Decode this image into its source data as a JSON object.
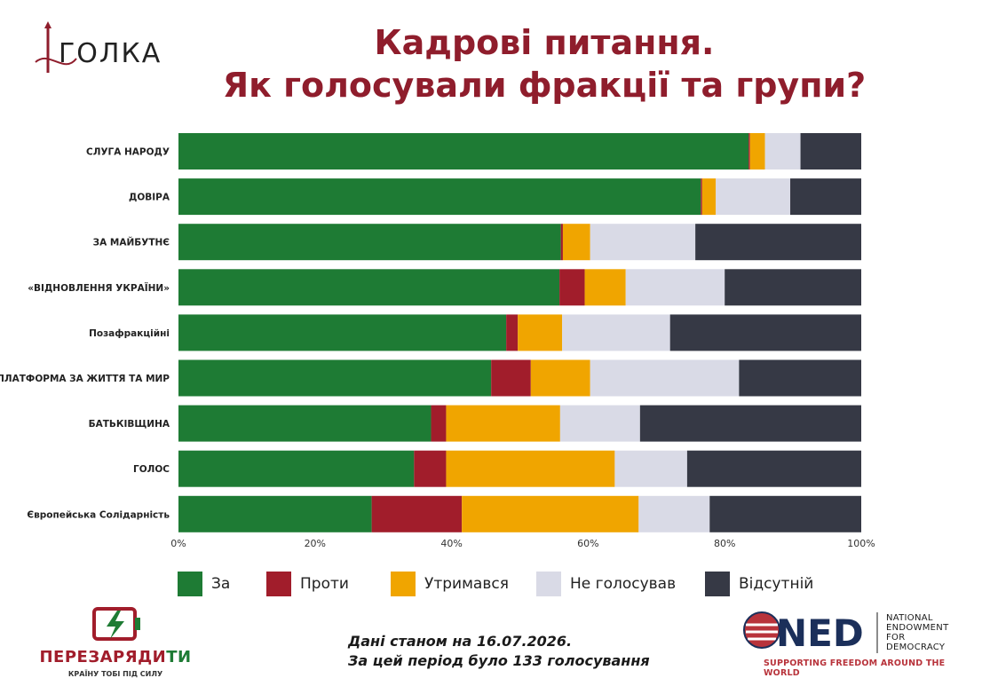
{
  "title": {
    "line1": "Кадрові питання.",
    "line2": "Як голосували фракції та групи?"
  },
  "brand": {
    "golka_logo_text": "ГОЛКА",
    "perezaryadyty_part1": "ПЕРЕЗАРЯДИ",
    "perezaryadyty_part2": "ТИ",
    "perezaryadyty_tagline": "КРАЇНУ ТОБІ ПІД СИЛУ",
    "ned_logo_text": "NED",
    "ned_full_name": [
      "NATIONAL",
      "ENDOWMENT",
      "FOR",
      "DEMOCRACY"
    ],
    "ned_tagline": "SUPPORTING FREEDOM AROUND THE WORLD"
  },
  "footnote": {
    "line1": "Дані станом на 16.07.2026.",
    "line2": "За цей період було 133 голосування"
  },
  "colors": {
    "za": "#1e7b34",
    "proty": "#a11d2b",
    "utrymavsia": "#f0a500",
    "ne_holosuvav": "#d9dae6",
    "vidsutnii": "#363945",
    "title": "#8f1d2c"
  },
  "chart_data": {
    "type": "bar",
    "orientation": "horizontal",
    "stacked": true,
    "categories": [
      "СЛУГА НАРОДУ",
      "ДОВІРА",
      "ЗА МАЙБУТНЄ",
      "«ВІДНОВЛЕННЯ УКРАЇНИ»",
      "Позафракційні",
      "ПЛАТФОРМА ЗА ЖИТТЯ ТА МИР",
      "БАТЬКІВЩИНА",
      "ГОЛОС",
      "Європейська Солідарність"
    ],
    "series": [
      {
        "name": "За",
        "values": [
          83.5,
          76.5,
          56.0,
          55.8,
          48.0,
          45.8,
          37.0,
          34.5,
          28.3
        ]
      },
      {
        "name": "Проти",
        "values": [
          0.2,
          0.2,
          0.3,
          3.7,
          1.7,
          5.8,
          2.2,
          4.7,
          13.2
        ]
      },
      {
        "name": "Утримався",
        "values": [
          2.2,
          2.0,
          4.0,
          6.0,
          6.5,
          8.7,
          16.7,
          24.7,
          25.9
        ]
      },
      {
        "name": "Не голосував",
        "values": [
          5.2,
          10.9,
          15.4,
          14.5,
          15.8,
          21.8,
          11.7,
          10.6,
          10.4
        ]
      },
      {
        "name": "Відсутній",
        "values": [
          8.9,
          10.4,
          24.3,
          20.0,
          28.0,
          17.9,
          32.4,
          25.5,
          22.2
        ]
      }
    ],
    "x_ticks": [
      "0%",
      "20%",
      "40%",
      "60%",
      "80%",
      "100%"
    ],
    "xlim": [
      0,
      100
    ],
    "xlabel": "",
    "ylabel": "",
    "grid": false,
    "legend_position": "bottom"
  }
}
